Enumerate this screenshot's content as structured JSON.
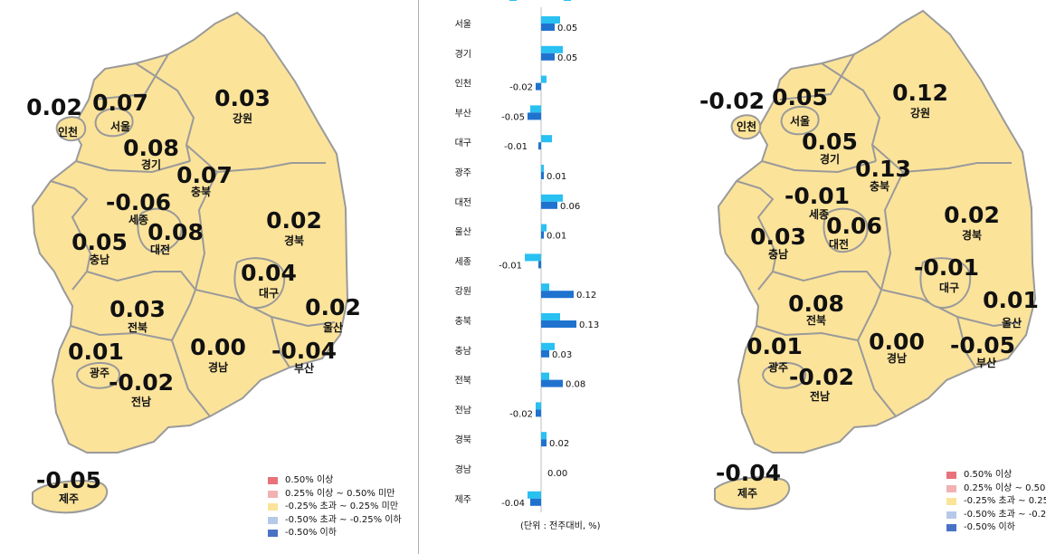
{
  "left_map": {
    "regions": [
      {
        "name": "인천",
        "value": "0.02"
      },
      {
        "name": "서울",
        "value": "0.07"
      },
      {
        "name": "강원",
        "value": "0.03"
      },
      {
        "name": "경기",
        "value": "0.08"
      },
      {
        "name": "충북",
        "value": "0.07"
      },
      {
        "name": "세종",
        "value": "-0.06"
      },
      {
        "name": "대전",
        "value": "0.08"
      },
      {
        "name": "충남",
        "value": "0.05"
      },
      {
        "name": "경북",
        "value": "0.02"
      },
      {
        "name": "대구",
        "value": "0.04"
      },
      {
        "name": "울산",
        "value": "0.02"
      },
      {
        "name": "전북",
        "value": "0.03"
      },
      {
        "name": "광주",
        "value": "0.01"
      },
      {
        "name": "경남",
        "value": "0.00"
      },
      {
        "name": "부산",
        "value": "-0.04"
      },
      {
        "name": "전남",
        "value": "-0.02"
      },
      {
        "name": "제주",
        "value": "-0.05"
      }
    ],
    "legend": [
      {
        "label": "0.50% 이상",
        "color": "#e8727a"
      },
      {
        "label": "0.25% 이상 ~ 0.50% 미만",
        "color": "#f2b2b2"
      },
      {
        "label": "-0.25% 초과 ~ 0.25% 미만",
        "color": "#fbe39a"
      },
      {
        "label": "-0.50% 초과 ~ -0.25% 이하",
        "color": "#b7c9e8"
      },
      {
        "label": "-0.50% 이하",
        "color": "#4a72c4"
      }
    ]
  },
  "right_map": {
    "regions": [
      {
        "name": "인천",
        "value": "-0.02"
      },
      {
        "name": "서울",
        "value": "0.05"
      },
      {
        "name": "강원",
        "value": "0.12"
      },
      {
        "name": "경기",
        "value": "0.05"
      },
      {
        "name": "충북",
        "value": "0.13"
      },
      {
        "name": "세종",
        "value": "-0.01"
      },
      {
        "name": "대전",
        "value": "0.06"
      },
      {
        "name": "충남",
        "value": "0.03"
      },
      {
        "name": "경북",
        "value": "0.02"
      },
      {
        "name": "대구",
        "value": "-0.01"
      },
      {
        "name": "울산",
        "value": "0.01"
      },
      {
        "name": "전북",
        "value": "0.08"
      },
      {
        "name": "광주",
        "value": "0.01"
      },
      {
        "name": "경남",
        "value": "0.00"
      },
      {
        "name": "부산",
        "value": "-0.05"
      },
      {
        "name": "전남",
        "value": "-0.02"
      },
      {
        "name": "제주",
        "value": "-0.04"
      }
    ],
    "legend": [
      {
        "label": "0.50% 이상",
        "color": "#e8727a"
      },
      {
        "label": "0.25% 이상 ~ 0.50",
        "color": "#f2b2b2"
      },
      {
        "label": "-0.25% 초과 ~ 0.25",
        "color": "#fbe39a"
      },
      {
        "label": "-0.50% 초과 ~ -0.2",
        "color": "#b7c9e8"
      },
      {
        "label": "-0.50% 이하",
        "color": "#4a72c4"
      }
    ]
  },
  "chart_data": {
    "type": "bar",
    "orientation": "horizontal",
    "categories": [
      "서울",
      "경기",
      "인천",
      "부산",
      "대구",
      "광주",
      "대전",
      "울산",
      "세종",
      "강원",
      "충북",
      "충남",
      "전북",
      "전남",
      "경북",
      "경남",
      "제주"
    ],
    "series": [
      {
        "color": "#29c0f2",
        "values": [
          0.07,
          0.08,
          0.02,
          -0.04,
          0.04,
          0.01,
          0.08,
          0.02,
          -0.06,
          0.03,
          0.07,
          0.05,
          0.03,
          -0.02,
          0.02,
          0.0,
          -0.05
        ]
      },
      {
        "color": "#1f73cf",
        "values": [
          0.05,
          0.05,
          -0.02,
          -0.05,
          -0.01,
          0.01,
          0.06,
          0.01,
          -0.01,
          0.12,
          0.13,
          0.03,
          0.08,
          -0.02,
          0.02,
          0.0,
          -0.04
        ]
      }
    ],
    "data_labels": [
      "0.05",
      "0.05",
      "-0.02",
      "-0.05",
      "-0.01",
      "0.01",
      "0.06",
      "0.01",
      "-0.01",
      "0.12",
      "0.13",
      "0.03",
      "0.08",
      "-0.02",
      "0.02",
      "0.00",
      "-0.04"
    ],
    "unit_label": "(단위 : 전주대비, %)"
  },
  "colors": {
    "land_fill": "#fbe39a",
    "border": "#9a9a9a"
  }
}
